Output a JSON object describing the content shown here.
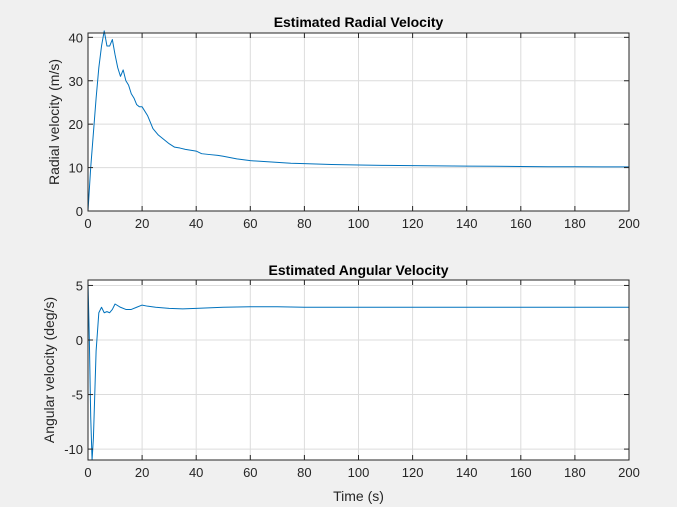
{
  "chart_data": [
    {
      "type": "line",
      "title": "Estimated Radial Velocity",
      "xlabel": "",
      "ylabel": "Radial velocity (m/s)",
      "xlim": [
        0,
        200
      ],
      "ylim": [
        0,
        41
      ],
      "xticks": [
        0,
        20,
        40,
        60,
        80,
        100,
        120,
        140,
        160,
        180,
        200
      ],
      "yticks": [
        0,
        10,
        20,
        30,
        40
      ],
      "grid": true,
      "series": [
        {
          "color": "#0072bd",
          "x": [
            0,
            1,
            2,
            3,
            4,
            5,
            6,
            7,
            8,
            9,
            10,
            11,
            12,
            13,
            14,
            15,
            16,
            17,
            18,
            19,
            20,
            22,
            24,
            26,
            28,
            30,
            32,
            34,
            36,
            38,
            40,
            42,
            45,
            48,
            50,
            55,
            60,
            65,
            70,
            75,
            80,
            90,
            100,
            110,
            120,
            130,
            140,
            150,
            160,
            170,
            180,
            190,
            200
          ],
          "y": [
            0,
            10,
            18,
            26,
            33,
            38,
            41.5,
            38,
            38,
            39.5,
            36,
            33,
            31,
            32.5,
            30,
            29,
            27,
            26,
            24.5,
            24,
            24,
            22,
            19,
            17.5,
            16.5,
            15.5,
            14.7,
            14.5,
            14.2,
            14,
            13.8,
            13.2,
            13,
            12.8,
            12.6,
            12,
            11.6,
            11.4,
            11.2,
            11,
            10.9,
            10.7,
            10.6,
            10.5,
            10.45,
            10.4,
            10.35,
            10.3,
            10.25,
            10.2,
            10.2,
            10.15,
            10.15
          ]
        }
      ]
    },
    {
      "type": "line",
      "title": "Estimated Angular Velocity",
      "xlabel": "Time (s)",
      "ylabel": "Angular velocity (deg/s)",
      "xlim": [
        0,
        200
      ],
      "ylim": [
        -11,
        5.5
      ],
      "xticks": [
        0,
        20,
        40,
        60,
        80,
        100,
        120,
        140,
        160,
        180,
        200
      ],
      "yticks": [
        -10,
        -5,
        0,
        5
      ],
      "ytick_labels": [
        "-10",
        "-5",
        "0",
        "5"
      ],
      "grid": true,
      "series": [
        {
          "color": "#0072bd",
          "x": [
            0,
            0.5,
            1,
            1.5,
            2,
            2.5,
            3,
            4,
            5,
            6,
            7,
            8,
            9,
            10,
            12,
            14,
            16,
            18,
            20,
            22,
            25,
            30,
            35,
            40,
            50,
            60,
            70,
            80,
            100,
            120,
            140,
            160,
            180,
            200
          ],
          "y": [
            5.3,
            0,
            -7,
            -11,
            -9,
            -5,
            -1,
            2.5,
            3,
            2.5,
            2.6,
            2.5,
            2.8,
            3.3,
            3,
            2.8,
            2.8,
            3,
            3.2,
            3.1,
            3,
            2.9,
            2.85,
            2.9,
            3,
            3.05,
            3.05,
            3,
            3,
            3,
            3,
            3,
            3,
            3
          ]
        }
      ]
    }
  ]
}
